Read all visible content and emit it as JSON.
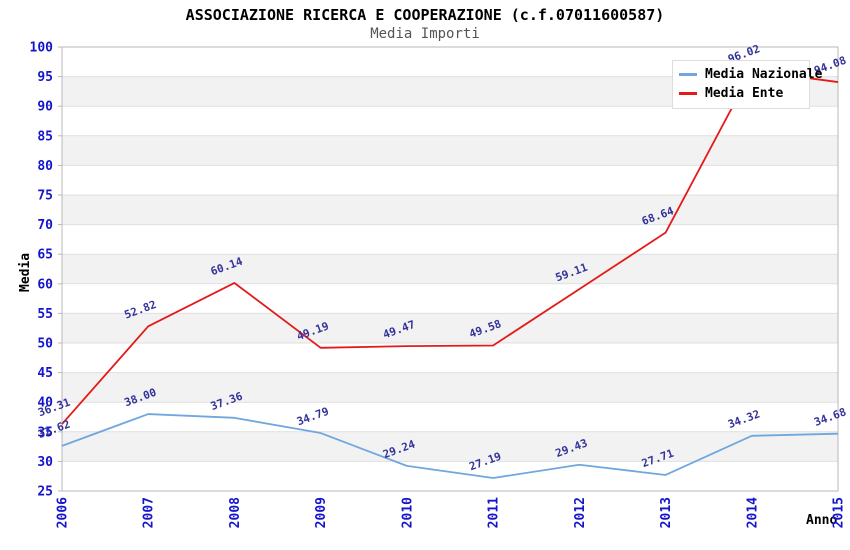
{
  "chart_data": {
    "type": "line",
    "title": "ASSOCIAZIONE RICERCA E COOPERAZIONE (c.f.07011600587)",
    "subtitle": "Media Importi",
    "xlabel": "Anno",
    "ylabel": "Media",
    "x": [
      "2006",
      "2007",
      "2008",
      "2009",
      "2010",
      "2011",
      "2012",
      "2013",
      "2014",
      "2015"
    ],
    "ylim": [
      25,
      100
    ],
    "ytick_step": 5,
    "grid": "horizontal-bands",
    "legend_position": "top-right",
    "series": [
      {
        "name": "Media Nazionale",
        "color": "#6FA7DE",
        "values": [
          32.62,
          38.0,
          37.36,
          34.79,
          29.24,
          27.19,
          29.43,
          27.71,
          34.32,
          34.68
        ]
      },
      {
        "name": "Media Ente",
        "color": "#E41A1A",
        "values": [
          36.31,
          52.82,
          60.14,
          49.19,
          49.47,
          49.58,
          59.11,
          68.64,
          96.02,
          94.08
        ]
      }
    ],
    "colors": {
      "tick_label": "#1414CC",
      "data_label": "#333399",
      "gridline": "#DFDFDF",
      "band_alt": "#F2F2F2",
      "band_main": "#FFFFFF",
      "plot_border": "#B8B8B8",
      "title": "#000000",
      "subtitle": "#555555"
    }
  }
}
